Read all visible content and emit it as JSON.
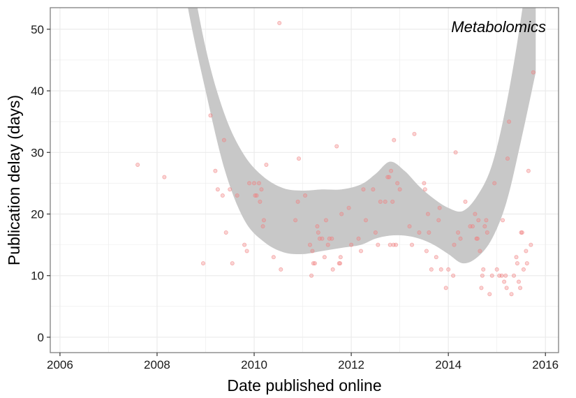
{
  "chart_data": {
    "type": "scatter",
    "title": "",
    "annotation": "Metabolomics",
    "xlabel": "Date published online",
    "ylabel": "Publication delay (days)",
    "xlim": [
      2005.8,
      2016.27
    ],
    "ylim": [
      -2.5,
      53.5
    ],
    "x_ticks": [
      2006,
      2008,
      2010,
      2012,
      2014,
      2016
    ],
    "y_ticks": [
      0,
      10,
      20,
      30,
      40,
      50
    ],
    "grid": true,
    "legend": "none",
    "colors": {
      "points": "#f08080",
      "band": "#c8c8c8",
      "grid": "#ebebeb",
      "panel_border": "#7f7f7f"
    },
    "smooth_band": {
      "x": [
        2007.8,
        2008.2,
        2008.6,
        2009.0,
        2009.4,
        2009.8,
        2010.2,
        2010.6,
        2011.0,
        2011.4,
        2011.8,
        2012.2,
        2012.5,
        2012.8,
        2013.1,
        2013.4,
        2013.7,
        2014.0,
        2014.3,
        2014.6,
        2014.9,
        2015.2,
        2015.5,
        2015.8
      ],
      "lower": [
        95,
        75,
        55,
        40,
        27,
        19,
        15.5,
        13.8,
        13.5,
        14,
        14.5,
        15,
        16,
        16.5,
        16.5,
        16,
        15,
        13.5,
        12,
        13,
        16,
        22,
        32,
        43
      ],
      "upper": [
        110,
        85,
        64,
        47,
        36,
        29.5,
        26,
        24.2,
        23.8,
        24,
        24,
        24.8,
        26.5,
        28.5,
        27,
        24.5,
        22.5,
        21,
        20.5,
        23,
        28,
        38,
        52,
        70
      ]
    },
    "points": [
      [
        2007.6,
        28
      ],
      [
        2008.15,
        26
      ],
      [
        2008.95,
        12
      ],
      [
        2009.1,
        36
      ],
      [
        2009.2,
        27
      ],
      [
        2009.25,
        24
      ],
      [
        2009.35,
        23
      ],
      [
        2009.38,
        32
      ],
      [
        2009.42,
        17
      ],
      [
        2009.5,
        24
      ],
      [
        2009.55,
        12
      ],
      [
        2009.65,
        23
      ],
      [
        2009.8,
        15
      ],
      [
        2009.85,
        14
      ],
      [
        2009.9,
        25
      ],
      [
        2010.0,
        25
      ],
      [
        2010.02,
        23
      ],
      [
        2010.05,
        23
      ],
      [
        2010.1,
        25
      ],
      [
        2010.12,
        22
      ],
      [
        2010.15,
        24
      ],
      [
        2010.18,
        18
      ],
      [
        2010.2,
        19
      ],
      [
        2010.25,
        28
      ],
      [
        2010.4,
        13
      ],
      [
        2010.55,
        11
      ],
      [
        2010.52,
        51
      ],
      [
        2010.85,
        19
      ],
      [
        2010.9,
        22
      ],
      [
        2010.92,
        29
      ],
      [
        2011.05,
        23
      ],
      [
        2011.15,
        15
      ],
      [
        2011.18,
        10
      ],
      [
        2011.2,
        14
      ],
      [
        2011.22,
        12
      ],
      [
        2011.25,
        12
      ],
      [
        2011.3,
        18
      ],
      [
        2011.32,
        17
      ],
      [
        2011.35,
        16
      ],
      [
        2011.4,
        16
      ],
      [
        2011.45,
        13
      ],
      [
        2011.48,
        19
      ],
      [
        2011.52,
        15
      ],
      [
        2011.55,
        16
      ],
      [
        2011.6,
        16
      ],
      [
        2011.62,
        11
      ],
      [
        2011.7,
        31
      ],
      [
        2011.75,
        12
      ],
      [
        2011.77,
        12
      ],
      [
        2011.78,
        13
      ],
      [
        2011.8,
        20
      ],
      [
        2011.95,
        21
      ],
      [
        2012.0,
        15
      ],
      [
        2012.15,
        16
      ],
      [
        2012.2,
        14
      ],
      [
        2012.25,
        24
      ],
      [
        2012.3,
        19
      ],
      [
        2012.45,
        24
      ],
      [
        2012.5,
        17
      ],
      [
        2012.55,
        15
      ],
      [
        2012.6,
        22
      ],
      [
        2012.7,
        22
      ],
      [
        2012.75,
        26
      ],
      [
        2012.78,
        26
      ],
      [
        2012.8,
        15
      ],
      [
        2012.82,
        27
      ],
      [
        2012.85,
        22
      ],
      [
        2012.87,
        15
      ],
      [
        2012.88,
        32
      ],
      [
        2012.92,
        15
      ],
      [
        2012.95,
        25
      ],
      [
        2013.0,
        24
      ],
      [
        2013.2,
        18
      ],
      [
        2013.25,
        15
      ],
      [
        2013.3,
        33
      ],
      [
        2013.4,
        17
      ],
      [
        2013.5,
        25
      ],
      [
        2013.52,
        24
      ],
      [
        2013.55,
        14
      ],
      [
        2013.58,
        20
      ],
      [
        2013.6,
        17
      ],
      [
        2013.65,
        11
      ],
      [
        2013.75,
        13
      ],
      [
        2013.8,
        19
      ],
      [
        2013.82,
        21
      ],
      [
        2013.85,
        11
      ],
      [
        2013.95,
        8
      ],
      [
        2014.0,
        11
      ],
      [
        2014.1,
        10
      ],
      [
        2014.12,
        15
      ],
      [
        2014.15,
        30
      ],
      [
        2014.2,
        17
      ],
      [
        2014.25,
        16
      ],
      [
        2014.35,
        22
      ],
      [
        2014.45,
        18
      ],
      [
        2014.5,
        18
      ],
      [
        2014.55,
        20
      ],
      [
        2014.58,
        16
      ],
      [
        2014.6,
        16
      ],
      [
        2014.62,
        19
      ],
      [
        2014.65,
        14
      ],
      [
        2014.68,
        8
      ],
      [
        2014.7,
        10
      ],
      [
        2014.72,
        11
      ],
      [
        2014.75,
        18
      ],
      [
        2014.78,
        19
      ],
      [
        2014.8,
        17
      ],
      [
        2014.85,
        7
      ],
      [
        2014.9,
        10
      ],
      [
        2014.95,
        25
      ],
      [
        2015.0,
        11
      ],
      [
        2015.05,
        10
      ],
      [
        2015.1,
        10
      ],
      [
        2015.12,
        19
      ],
      [
        2015.15,
        9
      ],
      [
        2015.18,
        10
      ],
      [
        2015.2,
        8
      ],
      [
        2015.22,
        29
      ],
      [
        2015.25,
        35
      ],
      [
        2015.3,
        7
      ],
      [
        2015.35,
        10
      ],
      [
        2015.4,
        13
      ],
      [
        2015.42,
        12
      ],
      [
        2015.45,
        9
      ],
      [
        2015.48,
        8
      ],
      [
        2015.5,
        17
      ],
      [
        2015.52,
        17
      ],
      [
        2015.55,
        11
      ],
      [
        2015.6,
        14
      ],
      [
        2015.62,
        12
      ],
      [
        2015.65,
        27
      ],
      [
        2015.7,
        15
      ],
      [
        2015.75,
        43
      ]
    ]
  }
}
